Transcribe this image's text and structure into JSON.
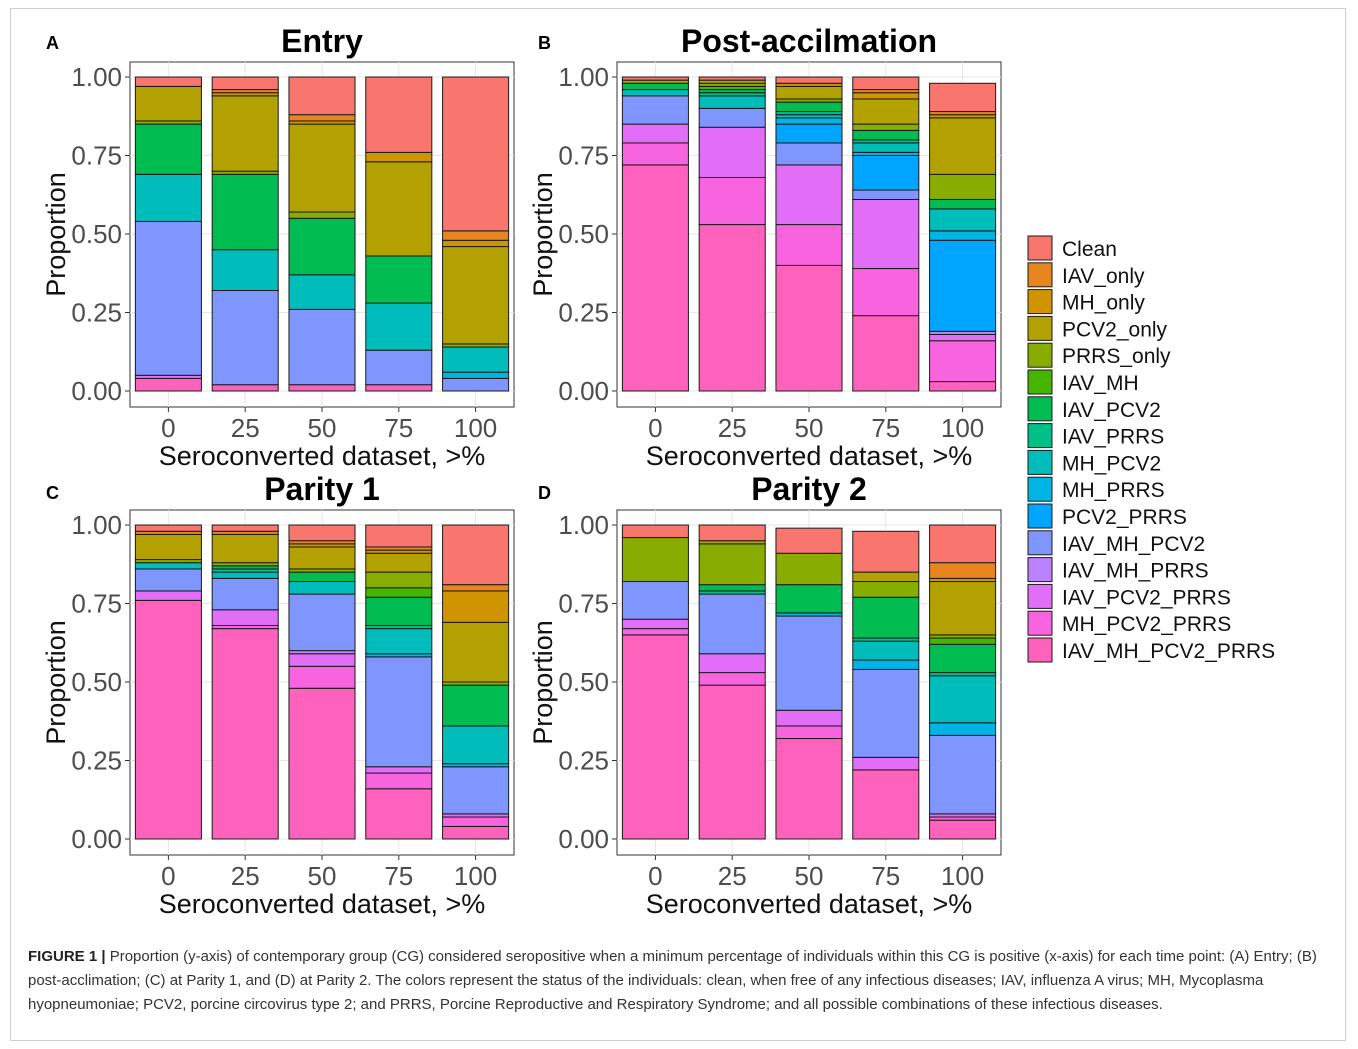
{
  "figure": {
    "legend_items": [
      "Clean",
      "IAV_only",
      "MH_only",
      "PCV2_only",
      "PRRS_only",
      "IAV_MH",
      "IAV_PCV2",
      "IAV_PRRS",
      "MH_PCV2",
      "MH_PRRS",
      "PCV2_PRRS",
      "IAV_MH_PCV2",
      "IAV_MH_PRRS",
      "IAV_PCV2_PRRS",
      "MH_PCV2_PRRS",
      "IAV_MH_PCV2_PRRS"
    ],
    "colors": {
      "Clean": "#F8766D",
      "IAV_only": "#E7851E",
      "MH_only": "#D09400",
      "PCV2_only": "#B2A100",
      "PRRS_only": "#89AC00",
      "IAV_MH": "#45B500",
      "IAV_PCV2": "#00BC51",
      "IAV_PRRS": "#00C087",
      "MH_PCV2": "#00BDBB",
      "MH_PRRS": "#00B4E4",
      "PCV2_PRRS": "#00A5FF",
      "IAV_MH_PCV2": "#7F96FF",
      "IAV_MH_PRRS": "#BC81FF",
      "IAV_PCV2_PRRS": "#E26EF7",
      "MH_PCV2_PRRS": "#F863DF",
      "IAV_MH_PCV2_PRRS": "#FF62BC"
    }
  },
  "caption": {
    "label": "FIGURE 1 |",
    "text": "Proportion (y-axis) of contemporary group (CG) considered seropositive when a minimum percentage of individuals within this CG is positive (x-axis) for each time point: (A) Entry; (B) post-acclimation; (C) at Parity 1, and (D) at Parity 2. The colors represent the status of the individuals: clean, when free of any infectious diseases; IAV, influenza A virus; MH, Mycoplasma hyopneumoniae; PCV2, porcine circovirus type 2; and PRRS, Porcine Reproductive and Respiratory Syndrome; and all possible combinations of these infectious diseases."
  },
  "chart_data": [
    {
      "panel": "A",
      "type": "bar",
      "stacked": true,
      "title": "Entry",
      "xlabel": "Seroconverted dataset, >%",
      "ylabel": "Proportion",
      "categories": [
        "0",
        "25",
        "50",
        "75",
        "100"
      ],
      "ylim": [
        0,
        1
      ],
      "yticks": [
        "0.00",
        "0.25",
        "0.50",
        "0.75",
        "1.00"
      ],
      "series": [
        {
          "name": "IAV_MH_PCV2_PRRS",
          "values": [
            0.04,
            0.02,
            0.02,
            0.02,
            0.0
          ]
        },
        {
          "name": "MH_PCV2_PRRS",
          "values": [
            0.0,
            0.0,
            0.0,
            0.0,
            0.0
          ]
        },
        {
          "name": "IAV_PCV2_PRRS",
          "values": [
            0.01,
            0.0,
            0.0,
            0.0,
            0.0
          ]
        },
        {
          "name": "IAV_MH_PRRS",
          "values": [
            0.0,
            0.0,
            0.0,
            0.0,
            0.0
          ]
        },
        {
          "name": "IAV_MH_PCV2",
          "values": [
            0.49,
            0.3,
            0.24,
            0.11,
            0.04
          ]
        },
        {
          "name": "PCV2_PRRS",
          "values": [
            0.0,
            0.0,
            0.0,
            0.0,
            0.0
          ]
        },
        {
          "name": "MH_PRRS",
          "values": [
            0.0,
            0.0,
            0.0,
            0.0,
            0.02
          ]
        },
        {
          "name": "MH_PCV2",
          "values": [
            0.15,
            0.13,
            0.11,
            0.15,
            0.08
          ]
        },
        {
          "name": "IAV_PRRS",
          "values": [
            0.0,
            0.0,
            0.0,
            0.0,
            0.0
          ]
        },
        {
          "name": "IAV_PCV2",
          "values": [
            0.16,
            0.24,
            0.18,
            0.15,
            0.0
          ]
        },
        {
          "name": "IAV_MH",
          "values": [
            0.0,
            0.0,
            0.0,
            0.0,
            0.0
          ]
        },
        {
          "name": "PRRS_only",
          "values": [
            0.01,
            0.01,
            0.02,
            0.0,
            0.01
          ]
        },
        {
          "name": "PCV2_only",
          "values": [
            0.11,
            0.24,
            0.28,
            0.3,
            0.31
          ]
        },
        {
          "name": "MH_only",
          "values": [
            0.0,
            0.01,
            0.01,
            0.03,
            0.02
          ]
        },
        {
          "name": "IAV_only",
          "values": [
            0.0,
            0.01,
            0.02,
            0.0,
            0.03
          ]
        },
        {
          "name": "Clean",
          "values": [
            0.03,
            0.04,
            0.12,
            0.24,
            0.49
          ]
        }
      ]
    },
    {
      "panel": "B",
      "type": "bar",
      "stacked": true,
      "title": "Post-accilmation",
      "xlabel": "Seroconverted dataset, >%",
      "ylabel": "Proportion",
      "categories": [
        "0",
        "25",
        "50",
        "75",
        "100"
      ],
      "ylim": [
        0,
        1
      ],
      "yticks": [
        "0.00",
        "0.25",
        "0.50",
        "0.75",
        "1.00"
      ],
      "series": [
        {
          "name": "IAV_MH_PCV2_PRRS",
          "values": [
            0.72,
            0.53,
            0.4,
            0.24,
            0.03
          ]
        },
        {
          "name": "MH_PCV2_PRRS",
          "values": [
            0.07,
            0.15,
            0.13,
            0.15,
            0.13
          ]
        },
        {
          "name": "IAV_PCV2_PRRS",
          "values": [
            0.06,
            0.16,
            0.19,
            0.22,
            0.02
          ]
        },
        {
          "name": "IAV_MH_PRRS",
          "values": [
            0.0,
            0.0,
            0.0,
            0.0,
            0.01
          ]
        },
        {
          "name": "IAV_MH_PCV2",
          "values": [
            0.09,
            0.06,
            0.07,
            0.03,
            0.0
          ]
        },
        {
          "name": "PCV2_PRRS",
          "values": [
            0.0,
            0.0,
            0.06,
            0.11,
            0.29
          ]
        },
        {
          "name": "MH_PRRS",
          "values": [
            0.0,
            0.0,
            0.02,
            0.01,
            0.03
          ]
        },
        {
          "name": "MH_PCV2",
          "values": [
            0.02,
            0.04,
            0.01,
            0.03,
            0.07
          ]
        },
        {
          "name": "IAV_PRRS",
          "values": [
            0.0,
            0.01,
            0.01,
            0.01,
            0.0
          ]
        },
        {
          "name": "IAV_PCV2",
          "values": [
            0.02,
            0.01,
            0.03,
            0.03,
            0.03
          ]
        },
        {
          "name": "IAV_MH",
          "values": [
            0.0,
            0.01,
            0.0,
            0.0,
            0.0
          ]
        },
        {
          "name": "PRRS_only",
          "values": [
            0.0,
            0.01,
            0.01,
            0.02,
            0.08
          ]
        },
        {
          "name": "PCV2_only",
          "values": [
            0.01,
            0.01,
            0.04,
            0.08,
            0.18
          ]
        },
        {
          "name": "MH_only",
          "values": [
            0.0,
            0.0,
            0.01,
            0.02,
            0.01
          ]
        },
        {
          "name": "IAV_only",
          "values": [
            0.0,
            0.0,
            0.0,
            0.01,
            0.01
          ]
        },
        {
          "name": "Clean",
          "values": [
            0.01,
            0.01,
            0.02,
            0.04,
            0.09
          ]
        }
      ]
    },
    {
      "panel": "C",
      "type": "bar",
      "stacked": true,
      "title": "Parity 1",
      "xlabel": "Seroconverted dataset, >%",
      "ylabel": "Proportion",
      "categories": [
        "0",
        "25",
        "50",
        "75",
        "100"
      ],
      "ylim": [
        0,
        1
      ],
      "yticks": [
        "0.00",
        "0.25",
        "0.50",
        "0.75",
        "1.00"
      ],
      "series": [
        {
          "name": "IAV_MH_PCV2_PRRS",
          "values": [
            0.76,
            0.67,
            0.48,
            0.16,
            0.04
          ]
        },
        {
          "name": "MH_PCV2_PRRS",
          "values": [
            0.0,
            0.01,
            0.07,
            0.05,
            0.03
          ]
        },
        {
          "name": "IAV_PCV2_PRRS",
          "values": [
            0.03,
            0.05,
            0.04,
            0.02,
            0.01
          ]
        },
        {
          "name": "IAV_MH_PRRS",
          "values": [
            0.0,
            0.0,
            0.01,
            0.0,
            0.0
          ]
        },
        {
          "name": "IAV_MH_PCV2",
          "values": [
            0.07,
            0.1,
            0.18,
            0.35,
            0.15
          ]
        },
        {
          "name": "PCV2_PRRS",
          "values": [
            0.0,
            0.0,
            0.0,
            0.0,
            0.0
          ]
        },
        {
          "name": "MH_PRRS",
          "values": [
            0.0,
            0.0,
            0.0,
            0.01,
            0.01
          ]
        },
        {
          "name": "MH_PCV2",
          "values": [
            0.02,
            0.02,
            0.04,
            0.08,
            0.12
          ]
        },
        {
          "name": "IAV_PRRS",
          "values": [
            0.0,
            0.01,
            0.0,
            0.01,
            0.0
          ]
        },
        {
          "name": "IAV_PCV2",
          "values": [
            0.0,
            0.01,
            0.03,
            0.09,
            0.13
          ]
        },
        {
          "name": "IAV_MH",
          "values": [
            0.0,
            0.0,
            0.0,
            0.03,
            0.0
          ]
        },
        {
          "name": "PRRS_only",
          "values": [
            0.01,
            0.01,
            0.01,
            0.05,
            0.01
          ]
        },
        {
          "name": "PCV2_only",
          "values": [
            0.08,
            0.09,
            0.07,
            0.06,
            0.19
          ]
        },
        {
          "name": "MH_only",
          "values": [
            0.0,
            0.0,
            0.01,
            0.01,
            0.1
          ]
        },
        {
          "name": "IAV_only",
          "values": [
            0.01,
            0.01,
            0.01,
            0.01,
            0.02
          ]
        },
        {
          "name": "Clean",
          "values": [
            0.02,
            0.02,
            0.05,
            0.07,
            0.19
          ]
        }
      ]
    },
    {
      "panel": "D",
      "type": "bar",
      "stacked": true,
      "title": "Parity 2",
      "xlabel": "Seroconverted dataset, >%",
      "ylabel": "Proportion",
      "categories": [
        "0",
        "25",
        "50",
        "75",
        "100"
      ],
      "ylim": [
        0,
        1
      ],
      "yticks": [
        "0.00",
        "0.25",
        "0.50",
        "0.75",
        "1.00"
      ],
      "series": [
        {
          "name": "IAV_MH_PCV2_PRRS",
          "values": [
            0.65,
            0.49,
            0.32,
            0.22,
            0.06
          ]
        },
        {
          "name": "MH_PCV2_PRRS",
          "values": [
            0.02,
            0.04,
            0.04,
            0.0,
            0.01
          ]
        },
        {
          "name": "IAV_PCV2_PRRS",
          "values": [
            0.03,
            0.06,
            0.05,
            0.04,
            0.01
          ]
        },
        {
          "name": "IAV_MH_PRRS",
          "values": [
            0.0,
            0.0,
            0.0,
            0.0,
            0.0
          ]
        },
        {
          "name": "IAV_MH_PCV2",
          "values": [
            0.12,
            0.19,
            0.3,
            0.28,
            0.25
          ]
        },
        {
          "name": "PCV2_PRRS",
          "values": [
            0.0,
            0.0,
            0.0,
            0.0,
            0.0
          ]
        },
        {
          "name": "MH_PRRS",
          "values": [
            0.0,
            0.0,
            0.01,
            0.03,
            0.04
          ]
        },
        {
          "name": "MH_PCV2",
          "values": [
            0.0,
            0.0,
            0.0,
            0.06,
            0.15
          ]
        },
        {
          "name": "IAV_PRRS",
          "values": [
            0.0,
            0.01,
            0.0,
            0.01,
            0.01
          ]
        },
        {
          "name": "IAV_PCV2",
          "values": [
            0.0,
            0.02,
            0.09,
            0.13,
            0.09
          ]
        },
        {
          "name": "IAV_MH",
          "values": [
            0.0,
            0.0,
            0.0,
            0.0,
            0.02
          ]
        },
        {
          "name": "PRRS_only",
          "values": [
            0.14,
            0.13,
            0.1,
            0.05,
            0.01
          ]
        },
        {
          "name": "PCV2_only",
          "values": [
            0.0,
            0.01,
            0.0,
            0.03,
            0.17
          ]
        },
        {
          "name": "MH_only",
          "values": [
            0.0,
            0.0,
            0.0,
            0.0,
            0.01
          ]
        },
        {
          "name": "IAV_only",
          "values": [
            0.0,
            0.0,
            0.0,
            0.0,
            0.05
          ]
        },
        {
          "name": "Clean",
          "values": [
            0.04,
            0.05,
            0.08,
            0.13,
            0.12
          ]
        }
      ]
    }
  ]
}
